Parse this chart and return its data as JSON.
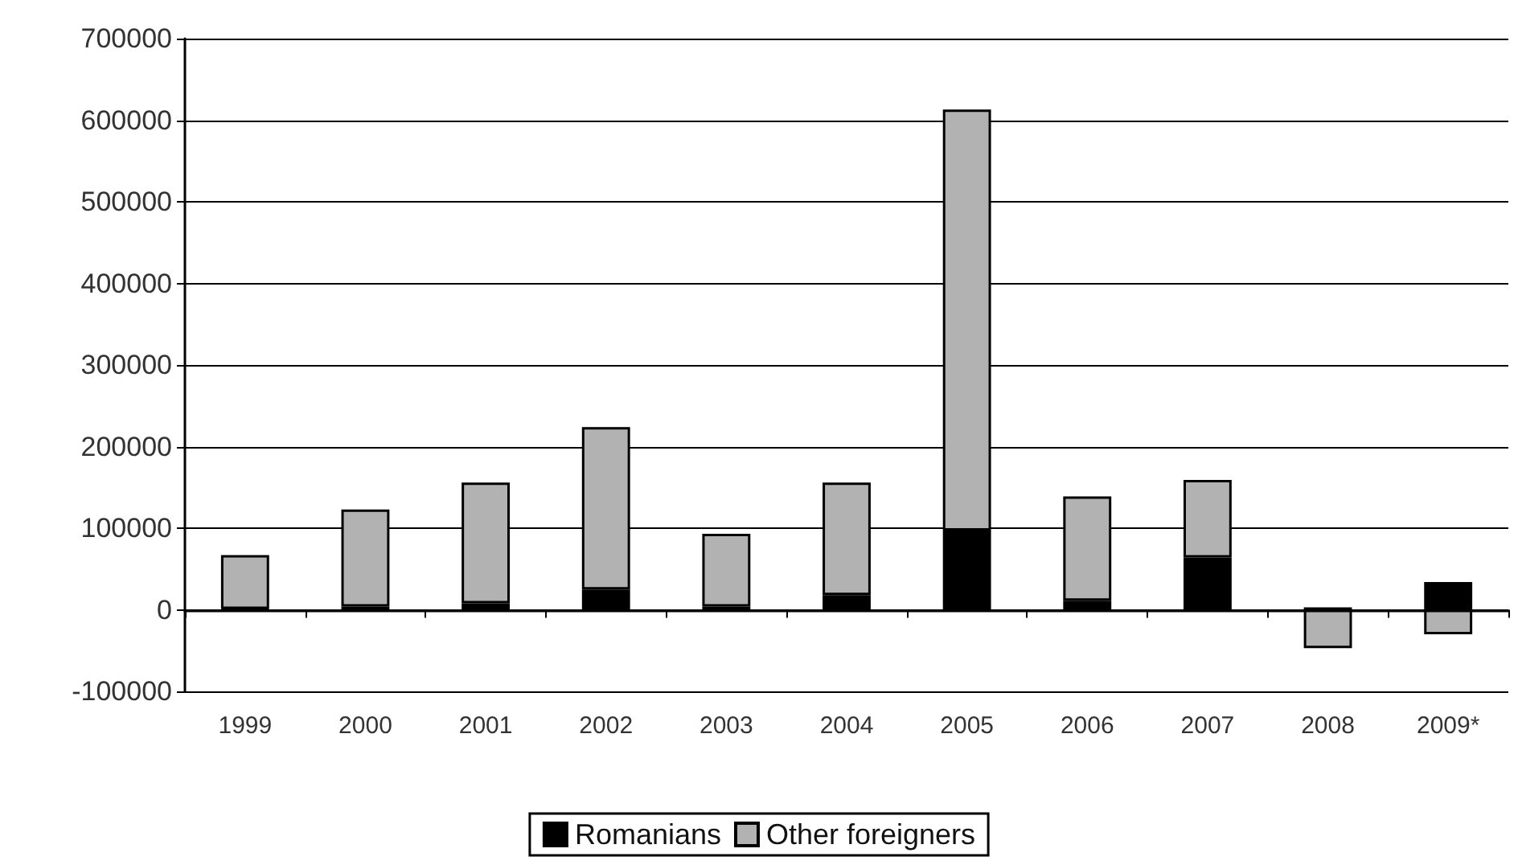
{
  "chart_data": {
    "type": "bar",
    "stacked": true,
    "categories": [
      "1999",
      "2000",
      "2001",
      "2002",
      "2003",
      "2004",
      "2005",
      "2006",
      "2007",
      "2008",
      "2009*"
    ],
    "series": [
      {
        "name": "Romanians",
        "color": "#000000",
        "values": [
          1000,
          4000,
          8000,
          25000,
          4000,
          18000,
          97000,
          11000,
          64000,
          3000,
          34000
        ]
      },
      {
        "name": "Other foreigners",
        "color": "#b2b2b2",
        "values": [
          66000,
          119000,
          148000,
          199000,
          89000,
          138000,
          516000,
          128000,
          95000,
          -47000,
          -30000
        ]
      }
    ],
    "ylim": [
      -100000,
      700000
    ],
    "yticks": [
      -100000,
      0,
      100000,
      200000,
      300000,
      400000,
      500000,
      600000,
      700000
    ],
    "grid": "y",
    "legend": "bottom"
  }
}
